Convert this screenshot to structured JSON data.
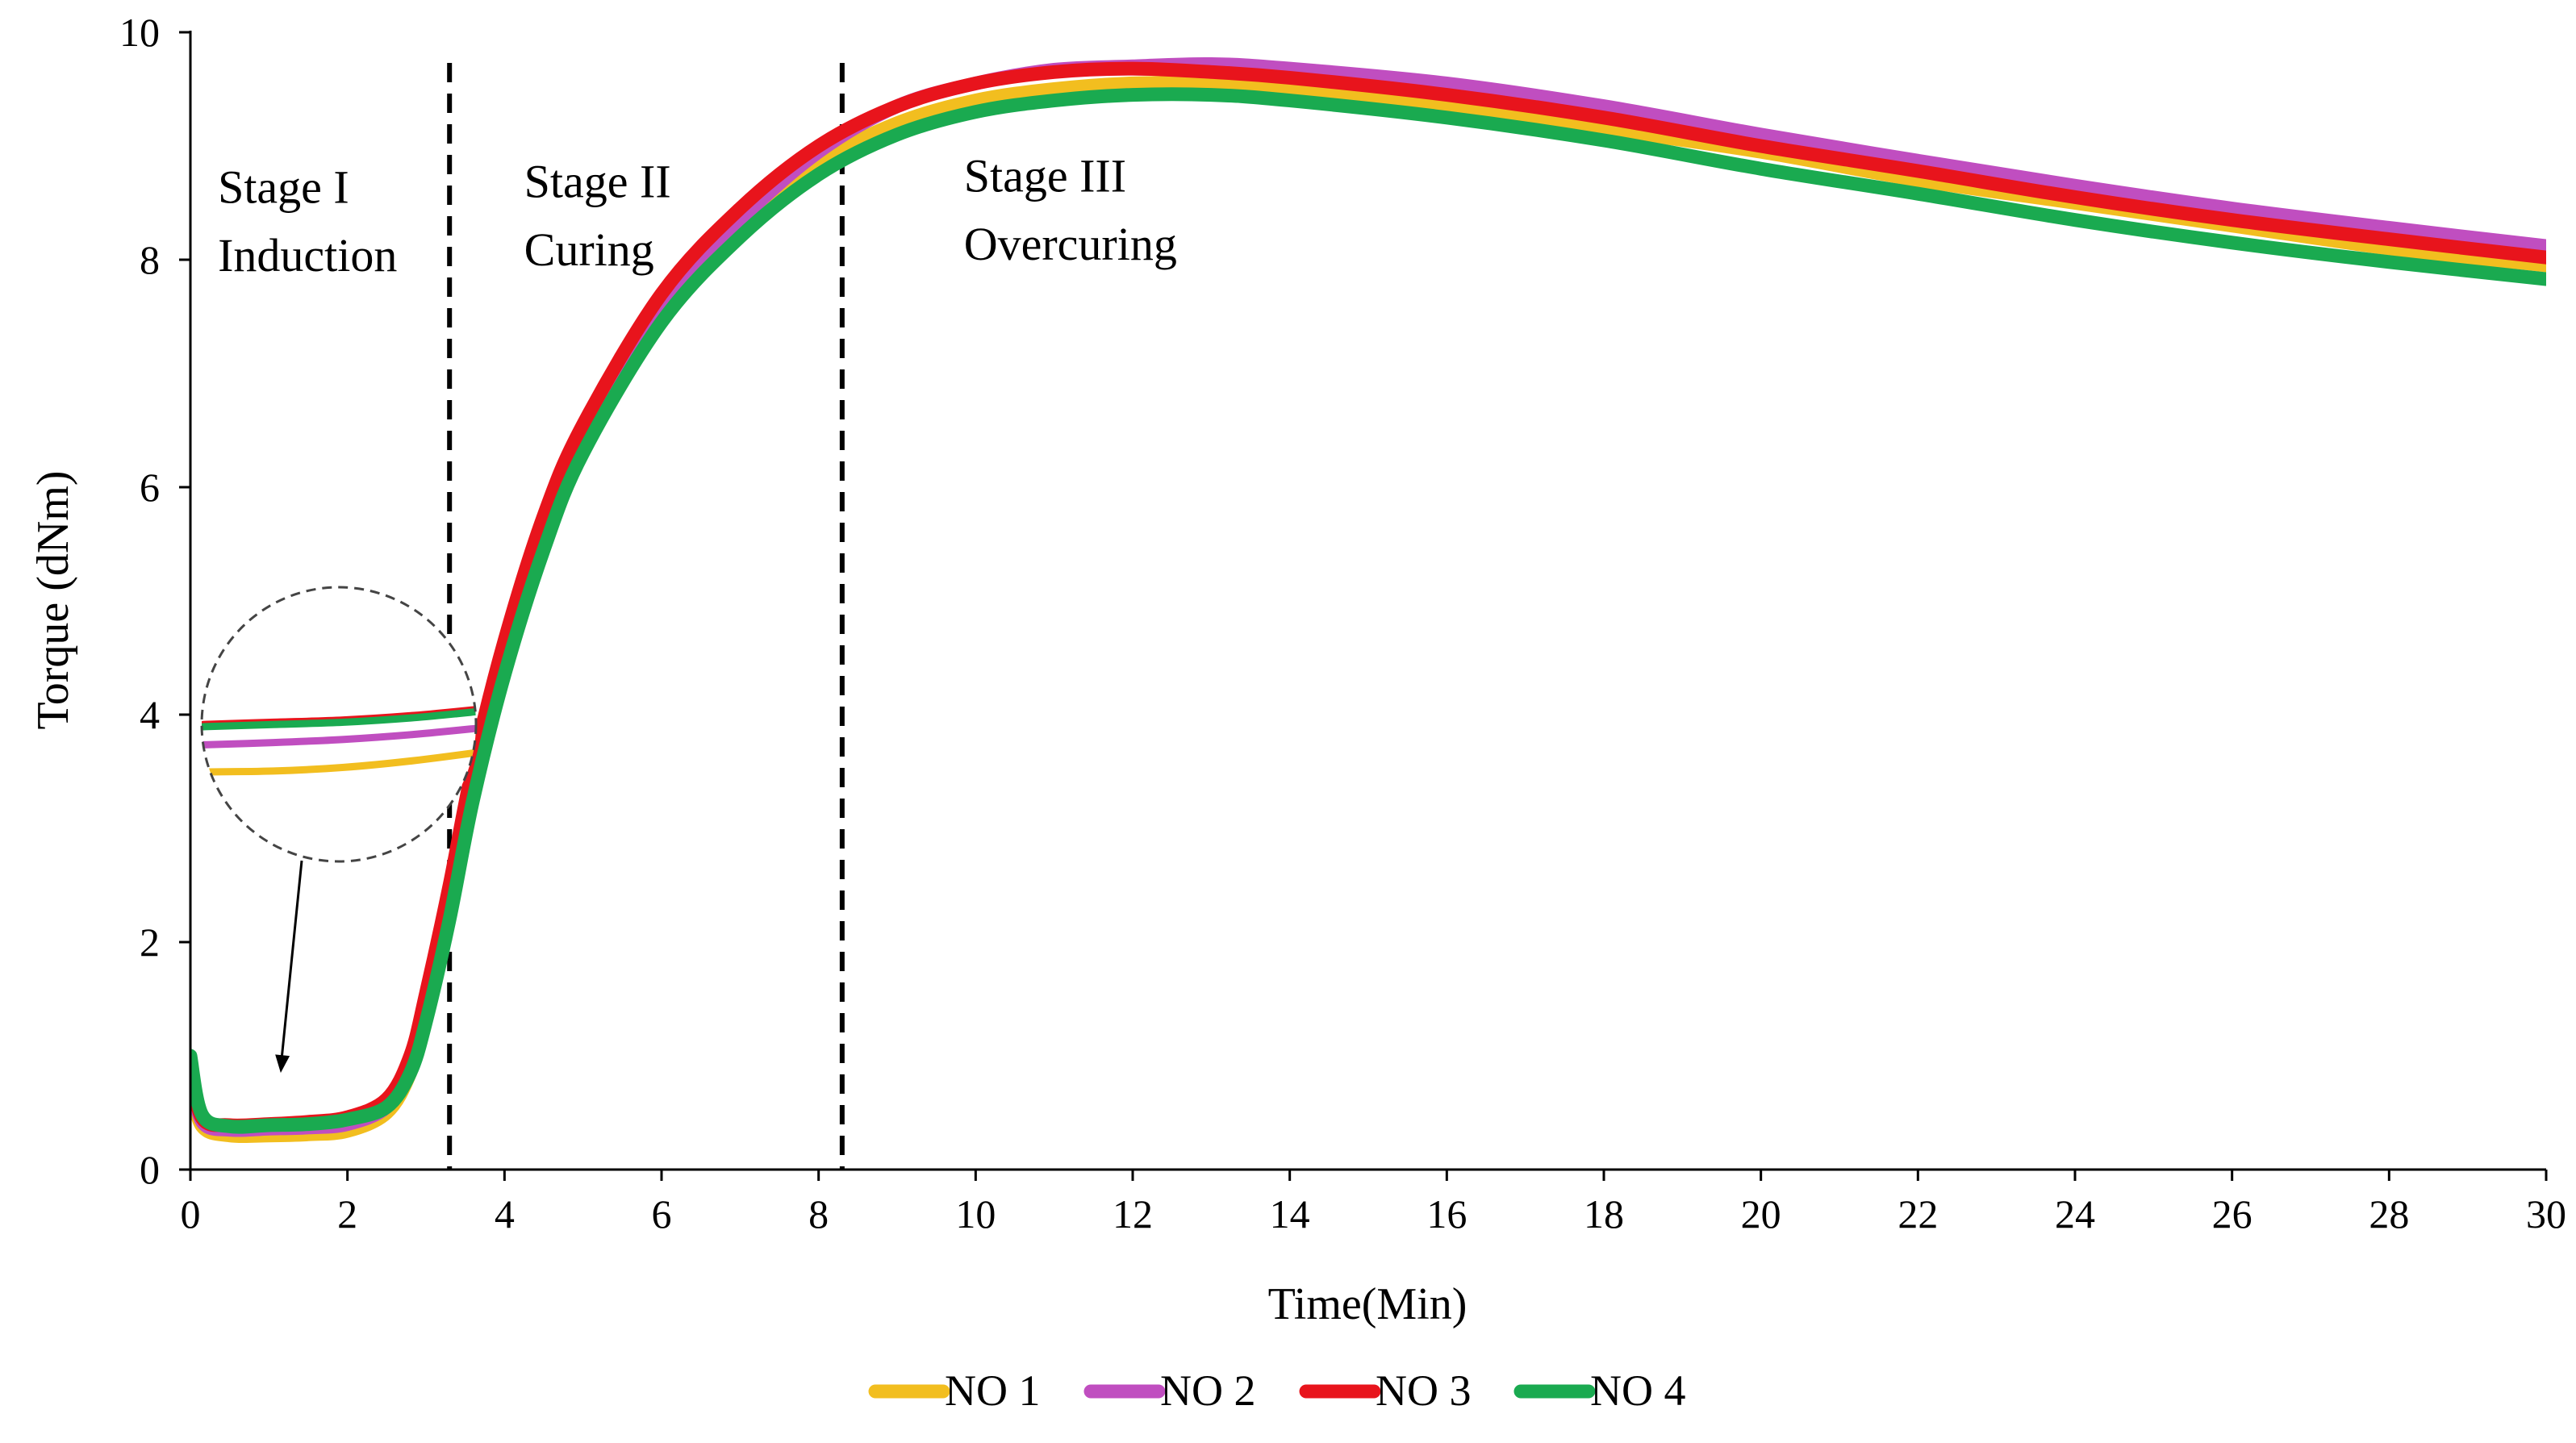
{
  "chart_data": {
    "type": "line",
    "title": "",
    "xlabel": "Time(Min)",
    "ylabel": "Torque (dNm)",
    "xlim": [
      0,
      30
    ],
    "ylim": [
      0,
      10
    ],
    "xticks": [
      0,
      2,
      4,
      6,
      8,
      10,
      12,
      14,
      16,
      18,
      20,
      22,
      24,
      26,
      28,
      30
    ],
    "yticks": [
      0,
      2,
      4,
      6,
      8,
      10
    ],
    "grid": false,
    "legend_position": "bottom",
    "stage_boundaries": [
      3.3,
      8.3
    ],
    "stages": [
      {
        "line1": "Stage I",
        "line2": "Induction",
        "x": 0.35,
        "y1": 8.5,
        "y2": 7.9
      },
      {
        "line1": "Stage II",
        "line2": "Curing",
        "x": 4.25,
        "y1": 8.55,
        "y2": 7.95
      },
      {
        "line1": "Stage III",
        "line2": "Overcuring",
        "x": 9.85,
        "y1": 8.6,
        "y2": 8.0
      }
    ],
    "series": [
      {
        "name": "NO 1",
        "color": "#F2BE1F",
        "x": [
          0,
          0.15,
          0.5,
          1,
          1.5,
          2,
          2.5,
          2.8,
          3,
          3.3,
          3.6,
          4,
          4.5,
          5,
          6,
          7,
          8,
          9,
          10,
          11,
          12,
          13,
          14,
          16,
          18,
          20,
          22,
          24,
          26,
          28,
          30
        ],
        "y": [
          0.75,
          0.38,
          0.3,
          0.3,
          0.31,
          0.34,
          0.5,
          0.85,
          1.35,
          2.3,
          3.35,
          4.45,
          5.55,
          6.4,
          7.55,
          8.3,
          8.85,
          9.2,
          9.4,
          9.5,
          9.55,
          9.55,
          9.5,
          9.35,
          9.15,
          8.95,
          8.7,
          8.5,
          8.3,
          8.1,
          7.95
        ]
      },
      {
        "name": "NO 2",
        "color": "#C04EC0",
        "x": [
          0,
          0.15,
          0.5,
          1,
          1.5,
          2,
          2.5,
          2.8,
          3,
          3.3,
          3.6,
          4,
          4.5,
          5,
          6,
          7,
          8,
          9,
          10,
          11,
          12,
          13,
          14,
          16,
          18,
          20,
          22,
          24,
          26,
          28,
          30
        ],
        "y": [
          0.85,
          0.42,
          0.35,
          0.36,
          0.37,
          0.4,
          0.55,
          0.9,
          1.4,
          2.35,
          3.4,
          4.5,
          5.6,
          6.45,
          7.6,
          8.35,
          8.95,
          9.35,
          9.55,
          9.67,
          9.7,
          9.72,
          9.68,
          9.55,
          9.35,
          9.1,
          8.87,
          8.65,
          8.45,
          8.28,
          8.12
        ]
      },
      {
        "name": "NO 3",
        "color": "#E8141C",
        "x": [
          0,
          0.15,
          0.5,
          1,
          1.5,
          2,
          2.5,
          2.8,
          3,
          3.3,
          3.6,
          4,
          4.5,
          5,
          6,
          7,
          8,
          9,
          10,
          11,
          12,
          13,
          14,
          16,
          18,
          20,
          22,
          24,
          26,
          28,
          30
        ],
        "y": [
          0.9,
          0.45,
          0.39,
          0.4,
          0.42,
          0.46,
          0.62,
          1.0,
          1.55,
          2.5,
          3.55,
          4.65,
          5.75,
          6.55,
          7.7,
          8.45,
          9.0,
          9.35,
          9.55,
          9.65,
          9.68,
          9.65,
          9.6,
          9.45,
          9.25,
          9.0,
          8.78,
          8.55,
          8.35,
          8.18,
          8.02
        ]
      },
      {
        "name": "NO 4",
        "color": "#1AAA50",
        "x": [
          0,
          0.15,
          0.5,
          1,
          1.5,
          2,
          2.5,
          2.8,
          3,
          3.3,
          3.6,
          4,
          4.5,
          5,
          6,
          7,
          8,
          9,
          10,
          11,
          12,
          13,
          14,
          16,
          18,
          20,
          22,
          24,
          26,
          28,
          30
        ],
        "y": [
          1.0,
          0.48,
          0.38,
          0.39,
          0.4,
          0.44,
          0.55,
          0.85,
          1.3,
          2.2,
          3.25,
          4.35,
          5.45,
          6.3,
          7.45,
          8.2,
          8.75,
          9.1,
          9.3,
          9.4,
          9.45,
          9.45,
          9.4,
          9.25,
          9.05,
          8.8,
          8.58,
          8.35,
          8.15,
          7.98,
          7.83
        ]
      }
    ]
  }
}
